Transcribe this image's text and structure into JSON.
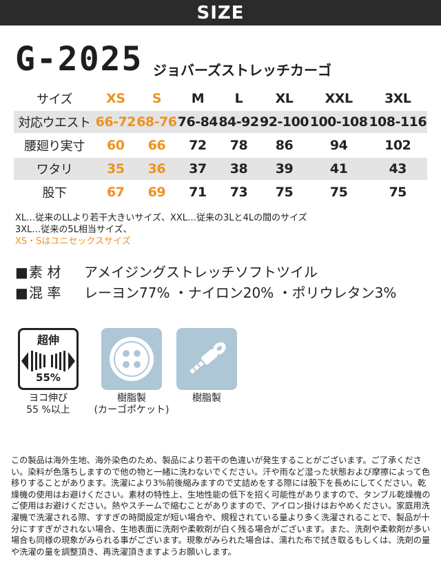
{
  "header": {
    "title": "SIZE"
  },
  "product": {
    "model": "G-2025",
    "name": "ジョバーズストレッチカーゴ"
  },
  "size_table": {
    "rows": [
      {
        "label": "サイズ",
        "cells": [
          "XS",
          "S",
          "M",
          "L",
          "XL",
          "XXL",
          "3XL"
        ]
      },
      {
        "label": "対応ウエスト",
        "cells": [
          "66-72",
          "68-76",
          "76-84",
          "84-92",
          "92-100",
          "100-108",
          "108-116"
        ]
      },
      {
        "label": "腰廻り実寸",
        "cells": [
          "60",
          "66",
          "72",
          "78",
          "86",
          "94",
          "102"
        ]
      },
      {
        "label": "ワタリ",
        "cells": [
          "35",
          "36",
          "37",
          "38",
          "39",
          "41",
          "43"
        ]
      },
      {
        "label": "股下",
        "cells": [
          "67",
          "69",
          "71",
          "73",
          "75",
          "75",
          "75"
        ]
      }
    ],
    "highlight_color": "#f0911f"
  },
  "notes": {
    "line1": "XL…従来のLLより若干大きいサイズ、XXL…従来の3Lと4Lの間のサイズ",
    "line2": "3XL…従来の5L相当サイズ、",
    "line3": "XS・Sはユニセックスサイズ"
  },
  "specs": [
    {
      "marker": "■",
      "label": "素 材",
      "value": "アメイジングストレッチソフトツイル"
    },
    {
      "marker": "■",
      "label": "混 率",
      "value": "レーヨン77% ・ナイロン20% ・ポリウレタン3%"
    }
  ],
  "features": [
    {
      "icon": "stretch-icon",
      "badge_top": "超伸",
      "badge_bottom": "55%",
      "caption1": "ヨコ伸び",
      "caption2": "55 %以上"
    },
    {
      "icon": "button-icon",
      "caption1": "樹脂製",
      "caption2": "(カーゴポケット)"
    },
    {
      "icon": "zipper-icon",
      "caption1": "樹脂製",
      "caption2": ""
    }
  ],
  "disclaimer": "この製品は海外生地、海外染色のため、製品により若干の色違いが発生することがございます。ご了承ください。染料が色落ちしますので他の物と一緒に洗わないでください。汗や雨など湿った状態および摩擦によって色移りすることがあります。洗濯により3%前後縮みますので丈詰めをする際には股下を長めにしてください。乾燥機の使用はお避けください。素材の特性上、生地性能の低下を招く可能性がありますので、タンブル乾燥機のご使用はお避けください。熱やスチームで縮むことがありますので、アイロン掛けはおやめください。家庭用洗濯機で洗濯される際、すすぎの時間設定が短い場合や、規程されている量より多く洗濯されることで、製品が十分にすすぎがされない場合、生地表面に洗剤や柔軟剤が白く残る場合がございます。また、洗剤や柔軟剤が多い場合も同様の現象がみられる事がございます。現象がみられた場合は、濡れた布で拭き取るもしくは、洗剤の量や洗濯の量を調整頂き、再洗濯頂きますようお願いします。"
}
